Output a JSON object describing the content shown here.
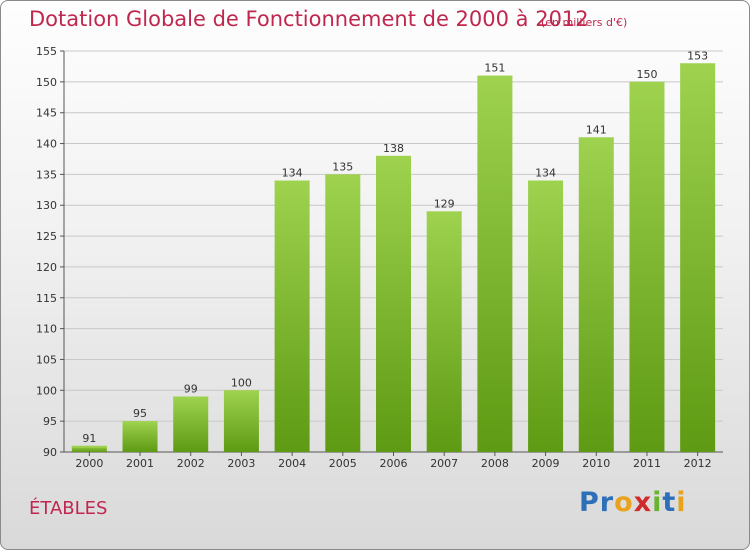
{
  "chart_data": {
    "type": "bar",
    "title": "Dotation Globale de Fonctionnement de 2000 à 2012",
    "subtitle": "(en milliers d'€)",
    "categories": [
      "2000",
      "2001",
      "2002",
      "2003",
      "2004",
      "2005",
      "2006",
      "2007",
      "2008",
      "2009",
      "2010",
      "2011",
      "2012"
    ],
    "values": [
      91,
      95,
      99,
      100,
      134,
      135,
      138,
      129,
      151,
      134,
      141,
      150,
      153
    ],
    "ylim": [
      90,
      155
    ],
    "yticks": [
      90,
      95,
      100,
      105,
      110,
      115,
      120,
      125,
      130,
      135,
      140,
      145,
      150,
      155
    ],
    "xlabel": "",
    "ylabel": "",
    "grid": true,
    "colors": {
      "bar_top": "#9ed24f",
      "bar_bottom": "#5e9a13",
      "accent": "#c0274f"
    }
  },
  "commune": "ÉTABLES",
  "logo": {
    "text": "Proxiti",
    "letters": [
      "P",
      "r",
      "o",
      "x",
      "i",
      "t",
      "i"
    ],
    "colors": [
      "#2d6fb8",
      "#2d6fb8",
      "#e9a21b",
      "#d12a2a",
      "#69b330",
      "#2d6fb8",
      "#e9a21b"
    ]
  }
}
